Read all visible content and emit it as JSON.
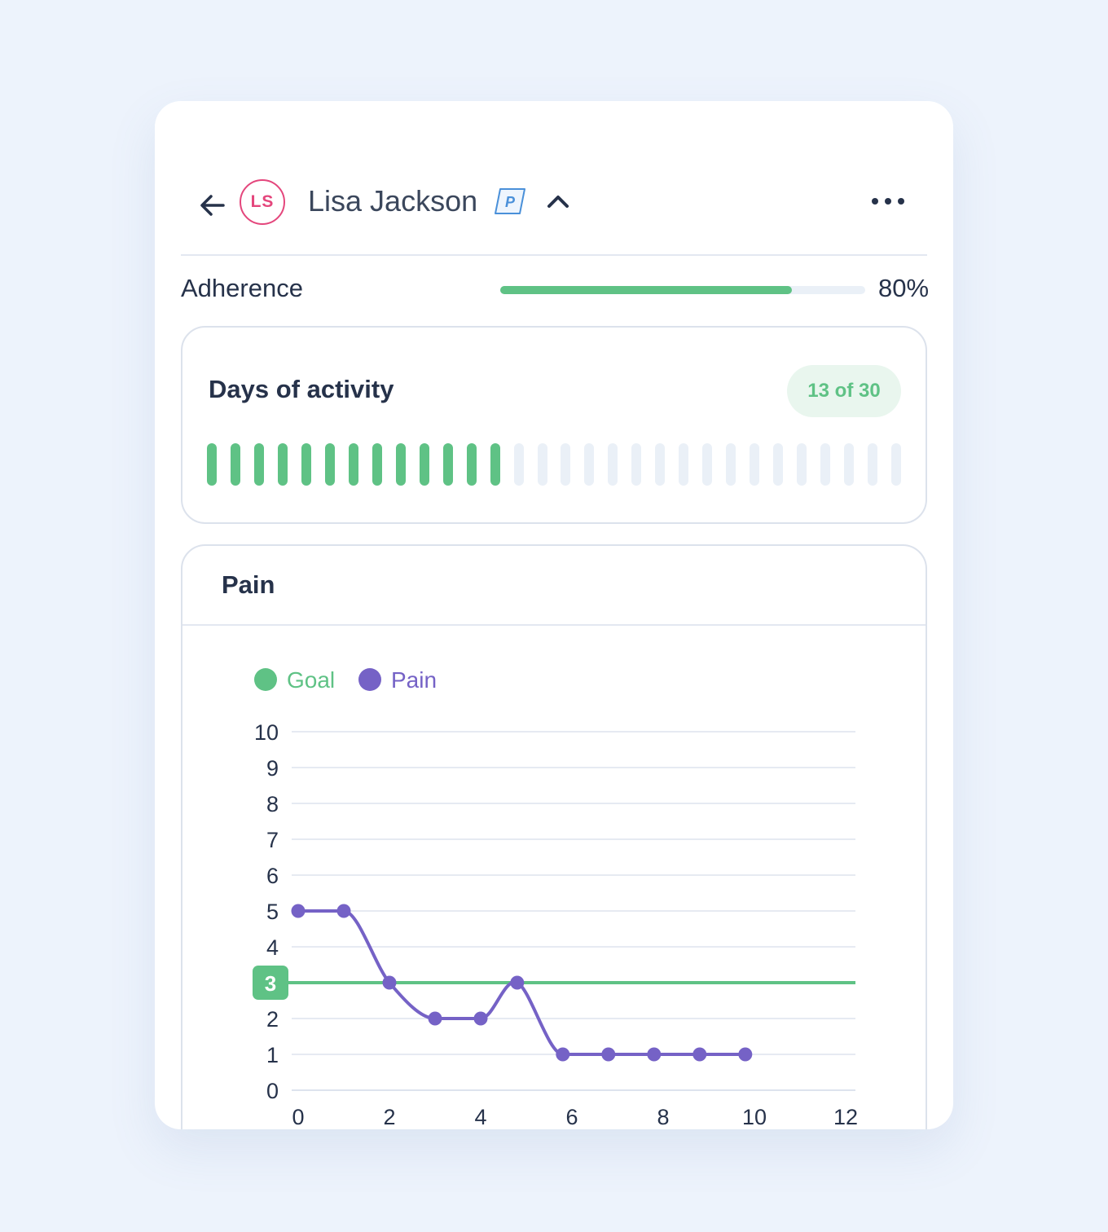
{
  "header": {
    "avatar_initials": "LS",
    "patient_name": "Lisa Jackson",
    "badge_letter": "P",
    "icons": [
      "arrow-left-icon",
      "p-badge-icon",
      "chevron-up-icon",
      "more-horizontal-icon"
    ]
  },
  "adherence": {
    "label": "Adherence",
    "value_text": "80%",
    "fraction": 0.8
  },
  "activity": {
    "title": "Days of activity",
    "count_text": "13 of 30",
    "active_days": 13,
    "total_days": 30
  },
  "pain": {
    "title": "Pain"
  },
  "colors": {
    "goal": "#5fc285",
    "pain": "#7562c6",
    "avatar": "#e4467c",
    "badge": "#4a90d9"
  },
  "chart_data": {
    "type": "line",
    "legend": [
      "Goal",
      "Pain"
    ],
    "legend_position": "top-left",
    "grid": true,
    "xlim": [
      0,
      12
    ],
    "ylim": [
      0,
      10
    ],
    "x_ticks": [
      "0",
      "2",
      "4",
      "6",
      "8",
      "10",
      "12"
    ],
    "y_ticks": [
      "0",
      "1",
      "2",
      "3",
      "4",
      "5",
      "6",
      "7",
      "8",
      "9",
      "10"
    ],
    "goal_value": 3,
    "goal_label": "3",
    "series": [
      {
        "name": "Pain",
        "x": [
          0,
          1,
          2,
          3,
          4,
          4.8,
          5.8,
          6.8,
          7.8,
          8.8,
          9.8
        ],
        "y": [
          5,
          5,
          3,
          2,
          2,
          3,
          1,
          1,
          1,
          1,
          1
        ]
      }
    ]
  }
}
